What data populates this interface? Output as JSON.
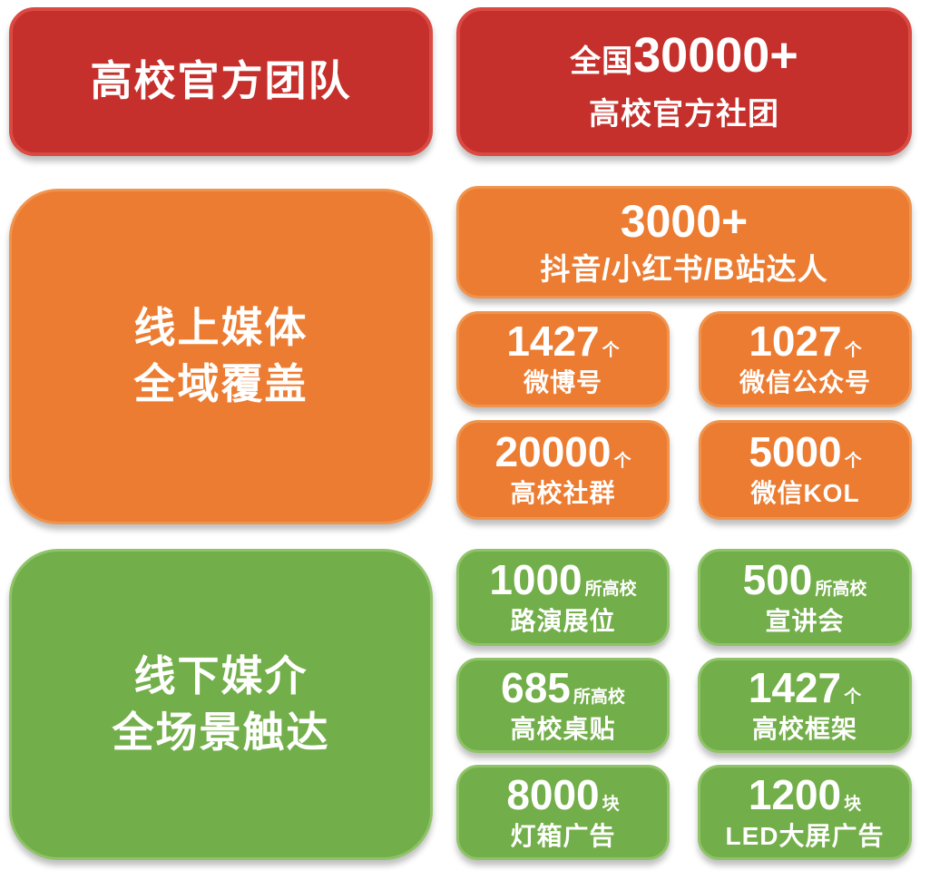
{
  "palette": {
    "background": "#ffffff",
    "text": "#ffffff",
    "red_fill": "#c6302c",
    "red_border": "#da4a42",
    "orange_fill": "#ec7c31",
    "orange_border": "#f0944d",
    "green_fill": "#72ae49",
    "green_border": "#8fc367"
  },
  "sections": [
    {
      "name": "高校官方团队",
      "color": "red",
      "title_lines": [
        "高校官方团队"
      ],
      "stats": [
        {
          "prefix": "全国",
          "number": "30000+",
          "label": "高校官方社团"
        }
      ]
    },
    {
      "name": "线上媒体全域覆盖",
      "color": "orange",
      "title_lines": [
        "线上媒体",
        "全域覆盖"
      ],
      "stats": [
        {
          "number": "3000+",
          "label": "抖音/小红书/B站达人"
        },
        {
          "number": "1427",
          "unit": "个",
          "label": "微博号"
        },
        {
          "number": "1027",
          "unit": "个",
          "label": "微信公众号"
        },
        {
          "number": "20000",
          "unit": "个",
          "label": "高校社群"
        },
        {
          "number": "5000",
          "unit": "个",
          "label": "微信KOL"
        }
      ]
    },
    {
      "name": "线下媒介全场景触达",
      "color": "green",
      "title_lines": [
        "线下媒介",
        "全场景触达"
      ],
      "stats": [
        {
          "number": "1000",
          "unit": "所高校",
          "label": "路演展位"
        },
        {
          "number": "500",
          "unit": "所高校",
          "label": "宣讲会"
        },
        {
          "number": "685",
          "unit": "所高校",
          "label": "高校桌贴"
        },
        {
          "number": "1427",
          "unit": "个",
          "label": "高校框架"
        },
        {
          "number": "8000",
          "unit": "块",
          "label": "灯箱广告"
        },
        {
          "number": "1200",
          "unit": "块",
          "label": "LED大屏广告"
        }
      ]
    }
  ]
}
